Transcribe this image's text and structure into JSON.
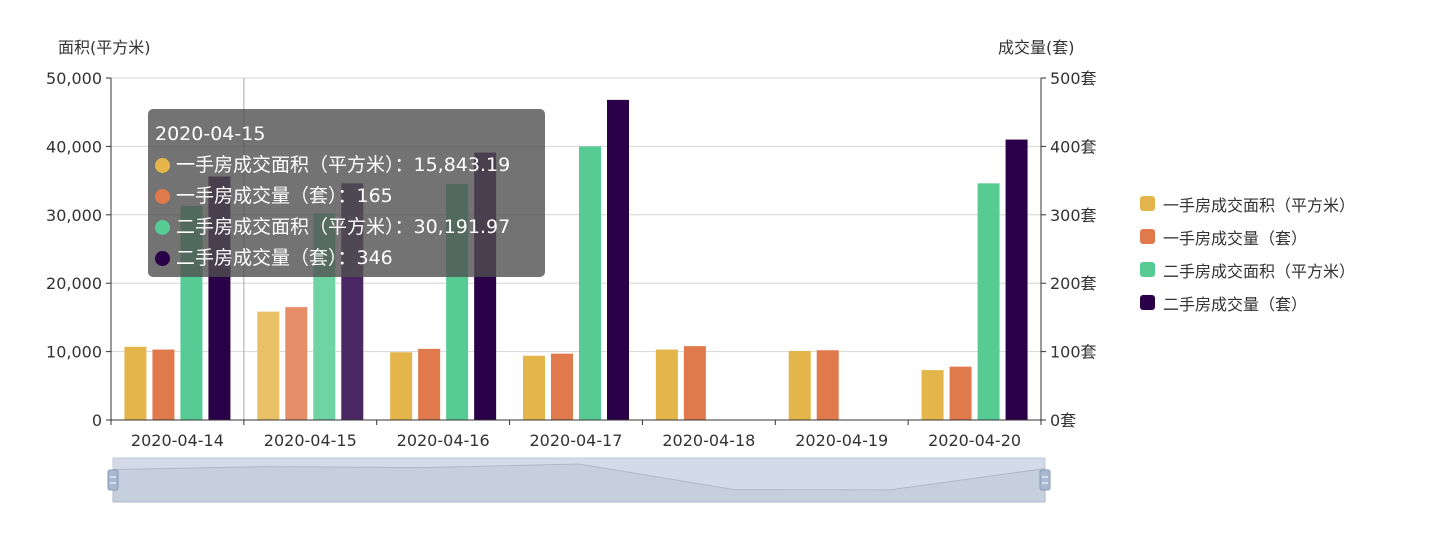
{
  "chart_data": {
    "type": "bar",
    "categories": [
      "2020-04-14",
      "2020-04-15",
      "2020-04-16",
      "2020-04-17",
      "2020-04-18",
      "2020-04-19",
      "2020-04-20"
    ],
    "series": [
      {
        "name": "一手房成交面积（平方米）",
        "axis": "left",
        "color": "#e4b54a",
        "values": [
          10700,
          15843.19,
          9900,
          9400,
          10300,
          10100,
          7300
        ]
      },
      {
        "name": "一手房成交量（套）",
        "axis": "right",
        "color": "#e07a4d",
        "values": [
          103,
          165,
          104,
          97,
          108,
          102,
          78
        ]
      },
      {
        "name": "二手房成交面积（平方米）",
        "axis": "left",
        "color": "#56cc94",
        "values": [
          31300,
          30191.97,
          34500,
          40000,
          0,
          0,
          34600
        ]
      },
      {
        "name": "二手房成交量（套）",
        "axis": "right",
        "color": "#2a0048",
        "values": [
          356,
          346,
          391,
          468,
          0,
          0,
          410
        ]
      }
    ],
    "y_left": {
      "name": "面积(平方米)",
      "min": 0,
      "max": 50000,
      "ticks": [
        "0",
        "10,000",
        "20,000",
        "30,000",
        "40,000",
        "50,000"
      ]
    },
    "y_right": {
      "name": "成交量(套)",
      "min": 0,
      "max": 500,
      "ticks": [
        "0套",
        "100套",
        "200套",
        "300套",
        "400套",
        "500套"
      ]
    },
    "grid": true,
    "legend_position": "right",
    "highlighted_category": "2020-04-15",
    "data_zoom": {
      "start_percent": 0,
      "end_percent": 100
    }
  },
  "tooltip": {
    "title": "2020-04-15",
    "rows": [
      {
        "color": "#e4b54a",
        "label": "一手房成交面积（平方米）：15,843.19"
      },
      {
        "color": "#e07a4d",
        "label": "一手房成交量（套）：165"
      },
      {
        "color": "#56cc94",
        "label": "二手房成交面积（平方米）：30,191.97"
      },
      {
        "color": "#2a0048",
        "label": "二手房成交量（套）：346"
      }
    ]
  }
}
